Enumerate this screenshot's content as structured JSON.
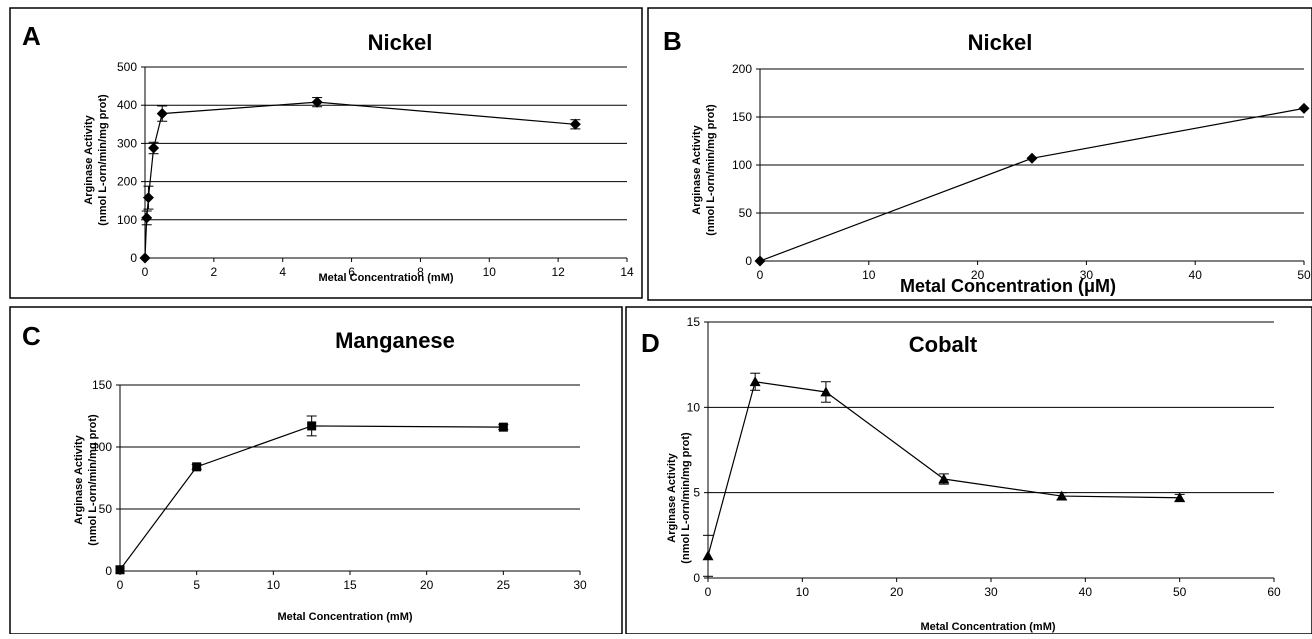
{
  "chart_data": [
    {
      "panel_letter": "A",
      "type": "line",
      "title": "Nickel",
      "xlabel": "Metal Concentration (mM)",
      "ylabel_line1": "Arginase Activity",
      "ylabel_line2": "(nmol L-orn/min/mg prot)",
      "xlim": [
        0,
        14
      ],
      "ylim": [
        0,
        500
      ],
      "xticks": [
        0,
        2,
        4,
        6,
        8,
        10,
        12,
        14
      ],
      "yticks": [
        0,
        100,
        200,
        300,
        400,
        500
      ],
      "grid": "horizontal",
      "marker": "diamond",
      "points": [
        {
          "x": 0,
          "y": 0,
          "err": 0
        },
        {
          "x": 0.05,
          "y": 105,
          "err": 18
        },
        {
          "x": 0.1,
          "y": 158,
          "err": 30
        },
        {
          "x": 0.25,
          "y": 288,
          "err": 15
        },
        {
          "x": 0.5,
          "y": 378,
          "err": 20
        },
        {
          "x": 5,
          "y": 408,
          "err": 12
        },
        {
          "x": 12.5,
          "y": 350,
          "err": 12
        }
      ]
    },
    {
      "panel_letter": "B",
      "type": "line",
      "title": "Nickel",
      "xlabel": "Metal Concentration (μM)",
      "ylabel_line1": "Arginase Activity",
      "ylabel_line2": "(nmol L-orn/min/mg prot)",
      "xlim": [
        0,
        50
      ],
      "ylim": [
        0,
        200
      ],
      "xticks": [
        0,
        10,
        20,
        30,
        40,
        50
      ],
      "yticks": [
        0,
        50,
        100,
        150,
        200
      ],
      "grid": "horizontal",
      "marker": "diamond",
      "points": [
        {
          "x": 0,
          "y": 0,
          "err": 0
        },
        {
          "x": 25,
          "y": 107,
          "err": 0
        },
        {
          "x": 50,
          "y": 159,
          "err": 0
        }
      ]
    },
    {
      "panel_letter": "C",
      "type": "line",
      "title": "Manganese",
      "xlabel": "Metal Concentration (mM)",
      "ylabel_line1": "Arginase Activity",
      "ylabel_line2": "(nmol L-orn/min/mg prot)",
      "xlim": [
        0,
        30
      ],
      "ylim": [
        0,
        150
      ],
      "xticks": [
        0,
        5,
        10,
        15,
        20,
        25,
        30
      ],
      "yticks": [
        0,
        50,
        100,
        150
      ],
      "grid": "horizontal",
      "marker": "square",
      "points": [
        {
          "x": 0,
          "y": 1,
          "err": 0
        },
        {
          "x": 5,
          "y": 84,
          "err": 2
        },
        {
          "x": 12.5,
          "y": 117,
          "err": 8
        },
        {
          "x": 25,
          "y": 116,
          "err": 2
        }
      ]
    },
    {
      "panel_letter": "D",
      "type": "line",
      "title": "Cobalt",
      "xlabel": "Metal Concentration (mM)",
      "ylabel_line1": "Arginase Activity",
      "ylabel_line2": "(nmol L-orn/min/mg prot)",
      "xlim": [
        0,
        60
      ],
      "ylim": [
        0,
        15
      ],
      "xticks": [
        0,
        10,
        20,
        30,
        40,
        50,
        60
      ],
      "yticks": [
        0,
        5,
        10,
        15
      ],
      "grid": "horizontal",
      "marker": "triangle",
      "points": [
        {
          "x": 0,
          "y": 1.3,
          "err": 1.2
        },
        {
          "x": 5,
          "y": 11.5,
          "err": 0.5
        },
        {
          "x": 12.5,
          "y": 10.9,
          "err": 0.6
        },
        {
          "x": 25,
          "y": 5.8,
          "err": 0.3
        },
        {
          "x": 37.5,
          "y": 4.8,
          "err": 0.2
        },
        {
          "x": 50,
          "y": 4.7,
          "err": 0.2
        }
      ]
    }
  ]
}
